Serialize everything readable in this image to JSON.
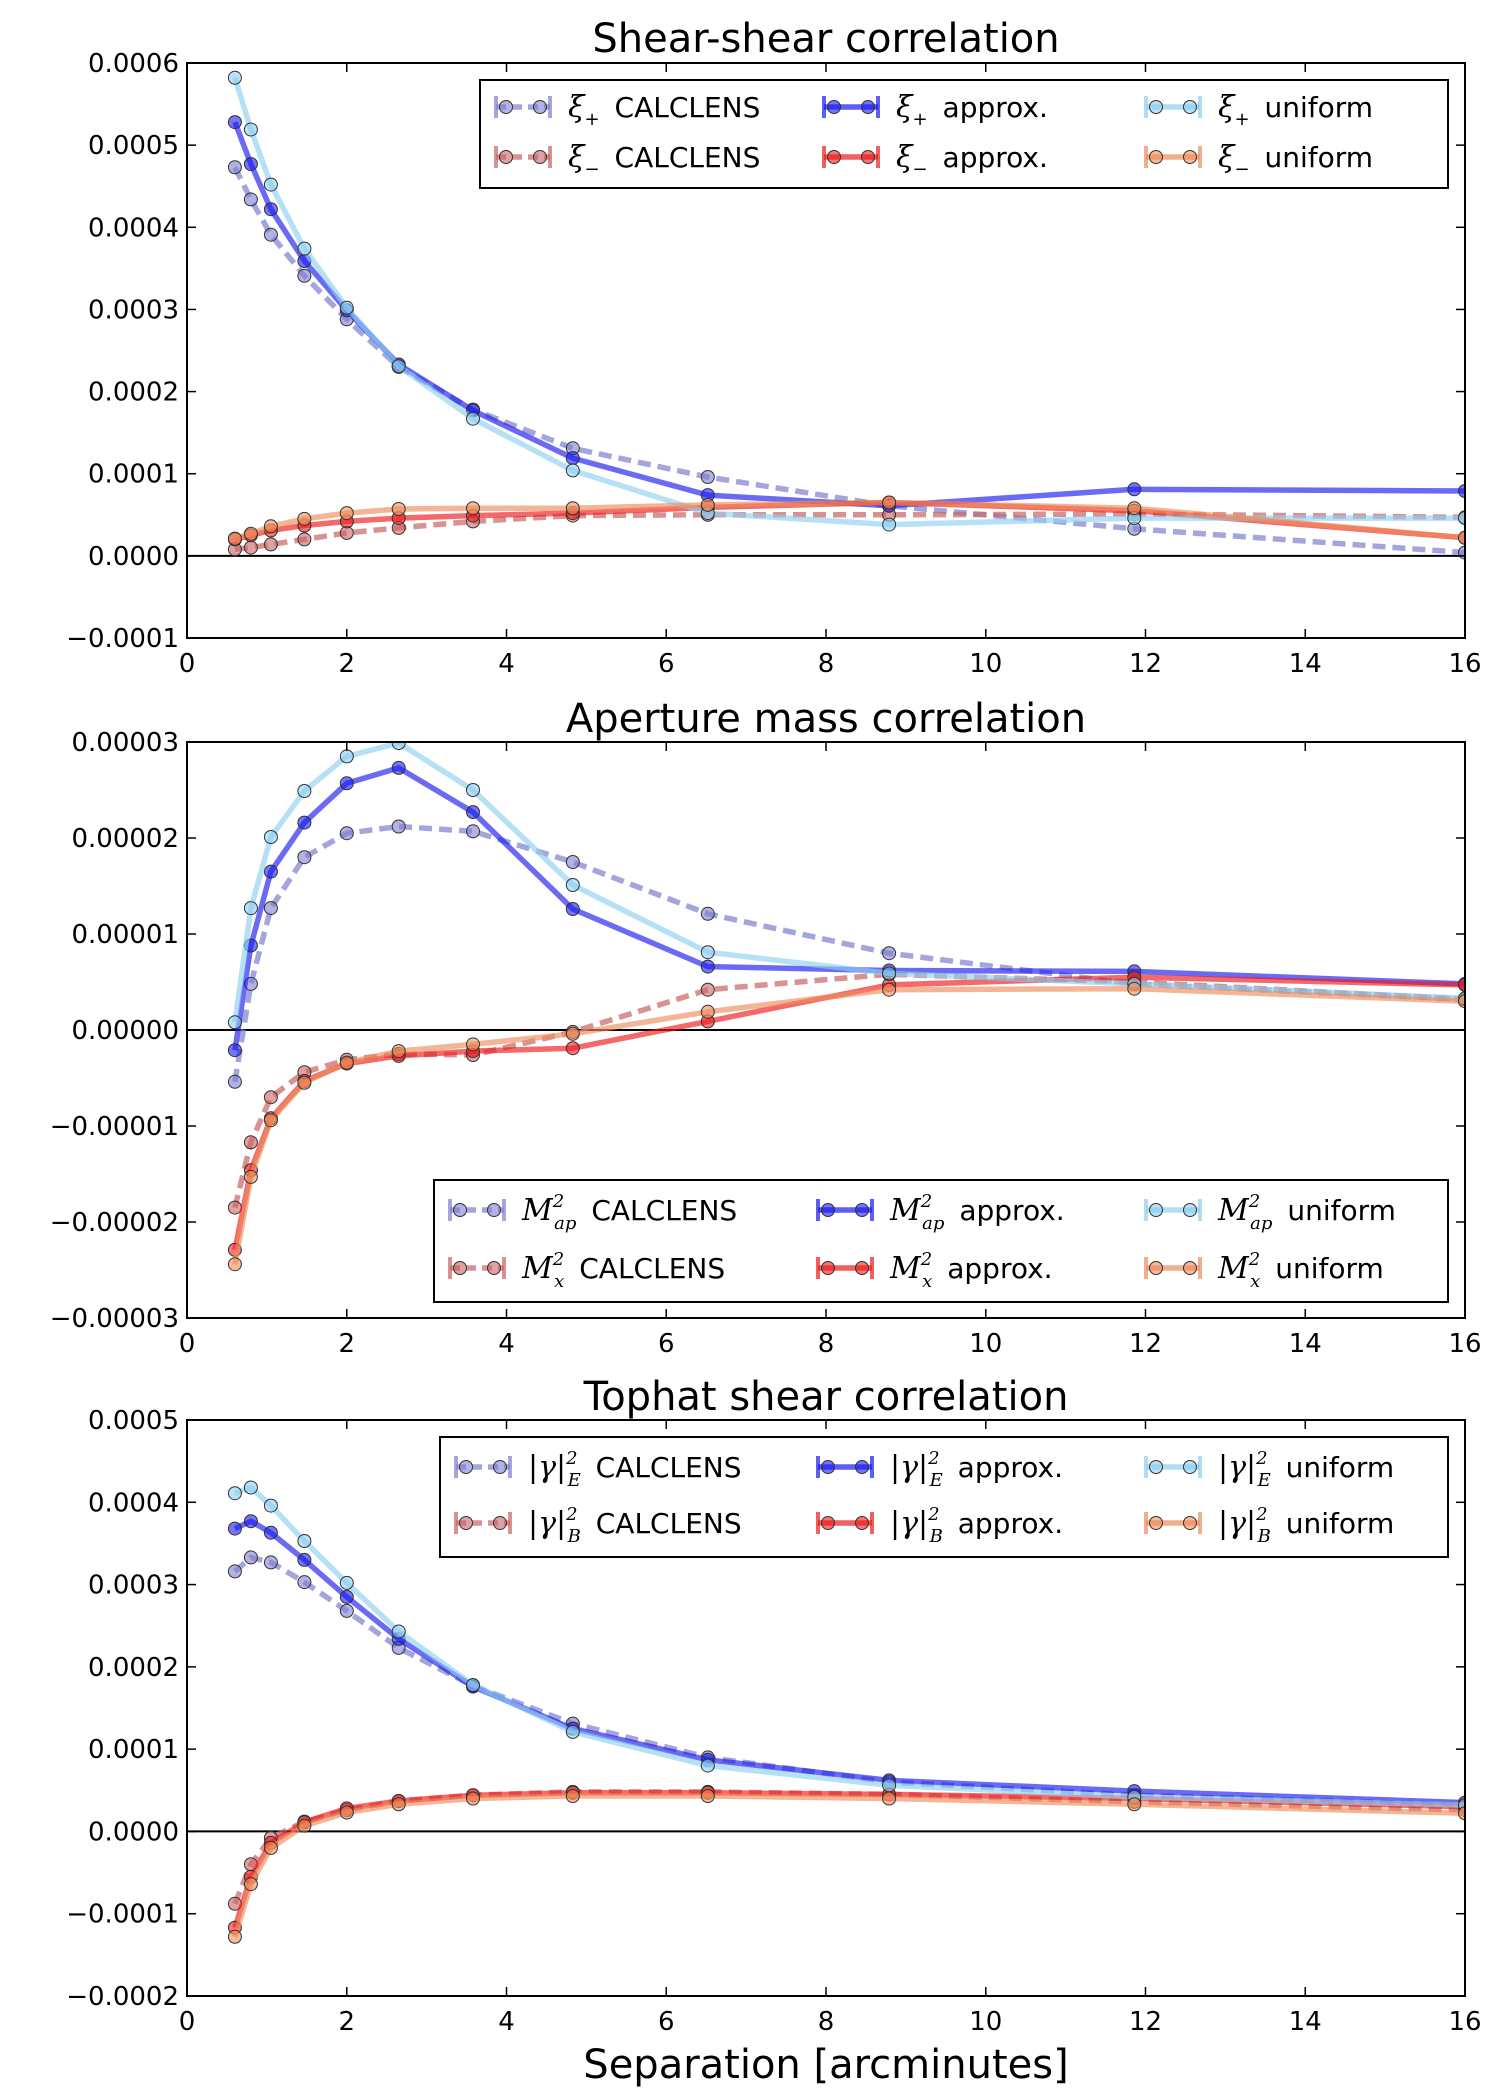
{
  "figure": {
    "xlabel": "Separation [arcminutes]"
  },
  "chart_data": [
    {
      "type": "line",
      "title": "Shear-shear correlation",
      "xlabel": "",
      "ylabel": "",
      "xlim": [
        0,
        16
      ],
      "ylim": [
        -0.0001,
        0.0006
      ],
      "xticks": [
        0,
        2,
        4,
        6,
        8,
        10,
        12,
        14,
        16
      ],
      "yticks": [
        -0.0001,
        0,
        0.0001,
        0.0002,
        0.0003,
        0.0004,
        0.0005,
        0.0006
      ],
      "ytick_labels": [
        "−0.0001",
        "0.0000",
        "0.0001",
        "0.0002",
        "0.0003",
        "0.0004",
        "0.0005",
        "0.0006"
      ],
      "zero_line": true,
      "legend_position": "top-right",
      "legend_columns": 3,
      "series": [
        {
          "legend_symbol": "ξ₊",
          "legend_text": "CALCLENS",
          "color": "#7f7fd0",
          "style": "dashed",
          "x": [
            0.6,
            0.8,
            1.05,
            1.47,
            2.0,
            2.65,
            3.58,
            4.83,
            6.52,
            8.79,
            11.86,
            16.0
          ],
          "y": [
            0.000473,
            0.000434,
            0.000391,
            0.000341,
            0.000288,
            0.00023,
            0.000178,
            0.000131,
            9.6e-05,
            6.1e-05,
            3.3e-05,
            4e-06
          ]
        },
        {
          "legend_symbol": "ξ₋",
          "legend_text": "CALCLENS",
          "color": "#c96464",
          "style": "dashed",
          "x": [
            0.6,
            0.8,
            1.05,
            1.47,
            2.0,
            2.65,
            3.58,
            4.83,
            6.52,
            8.79,
            11.86,
            16.0
          ],
          "y": [
            8e-06,
            1e-05,
            1.4e-05,
            2e-05,
            2.8e-05,
            3.4e-05,
            4.2e-05,
            4.9e-05,
            5e-05,
            5e-05,
            5.1e-05,
            4.7e-05
          ]
        },
        {
          "legend_symbol": "ξ₊",
          "legend_text": "approx.",
          "color": "#1a1aee",
          "style": "solid",
          "x": [
            0.6,
            0.8,
            1.05,
            1.47,
            2.0,
            2.65,
            3.58,
            4.83,
            6.52,
            8.79,
            11.86,
            16.0
          ],
          "y": [
            0.000528,
            0.000477,
            0.000422,
            0.000359,
            0.000299,
            0.000233,
            0.000177,
            0.000119,
            7.4e-05,
            6.1e-05,
            8.1e-05,
            7.9e-05
          ]
        },
        {
          "legend_symbol": "ξ₋",
          "legend_text": "approx.",
          "color": "#ee1a1a",
          "style": "solid",
          "x": [
            0.6,
            0.8,
            1.05,
            1.47,
            2.0,
            2.65,
            3.58,
            4.83,
            6.52,
            8.79,
            11.86,
            16.0
          ],
          "y": [
            2e-05,
            2.5e-05,
            3.1e-05,
            3.7e-05,
            4.2e-05,
            4.6e-05,
            4.9e-05,
            5.2e-05,
            5.9e-05,
            6.5e-05,
            5.5e-05,
            2.2e-05
          ]
        },
        {
          "legend_symbol": "ξ₊",
          "legend_text": "uniform",
          "color": "#8ecff0",
          "style": "solid",
          "x": [
            0.6,
            0.8,
            1.05,
            1.47,
            2.0,
            2.65,
            3.58,
            4.83,
            6.52,
            8.79,
            11.86,
            16.0
          ],
          "y": [
            0.000582,
            0.000519,
            0.000452,
            0.000374,
            0.000302,
            0.000231,
            0.000167,
            0.000104,
            5.2e-05,
            3.8e-05,
            4.6e-05,
            4.6e-05
          ]
        },
        {
          "legend_symbol": "ξ₋",
          "legend_text": "uniform",
          "color": "#ec8d5c",
          "style": "solid",
          "x": [
            0.6,
            0.8,
            1.05,
            1.47,
            2.0,
            2.65,
            3.58,
            4.83,
            6.52,
            8.79,
            11.86,
            16.0
          ],
          "y": [
            2.1e-05,
            2.7e-05,
            3.6e-05,
            4.5e-05,
            5.2e-05,
            5.7e-05,
            5.8e-05,
            5.8e-05,
            6.2e-05,
            6.5e-05,
            5.8e-05,
            2.2e-05
          ]
        }
      ]
    },
    {
      "type": "line",
      "title": "Aperture mass correlation",
      "xlabel": "",
      "ylabel": "",
      "xlim": [
        0,
        16
      ],
      "ylim": [
        -3e-05,
        3e-05
      ],
      "xticks": [
        0,
        2,
        4,
        6,
        8,
        10,
        12,
        14,
        16
      ],
      "yticks": [
        -3e-05,
        -2e-05,
        -1e-05,
        0,
        1e-05,
        2e-05,
        3e-05
      ],
      "ytick_labels": [
        "−0.00003",
        "−0.00002",
        "−0.00001",
        "0.00000",
        "0.00001",
        "0.00002",
        "0.00003"
      ],
      "zero_line": true,
      "legend_position": "bottom-right",
      "legend_columns": 3,
      "series": [
        {
          "legend_symbol": "Mₐₚ²",
          "legend_text": "CALCLENS",
          "color": "#7f7fd0",
          "style": "dashed",
          "x": [
            0.6,
            0.8,
            1.05,
            1.47,
            2.0,
            2.65,
            3.58,
            4.83,
            6.52,
            8.79,
            11.86,
            16.0
          ],
          "y": [
            -5.4e-06,
            4.8e-06,
            1.27e-05,
            1.8e-05,
            2.05e-05,
            2.12e-05,
            2.07e-05,
            1.75e-05,
            1.21e-05,
            8e-06,
            4.8e-06,
            3.2e-06
          ]
        },
        {
          "legend_symbol": "Mₓ²",
          "legend_text": "CALCLENS",
          "color": "#c96464",
          "style": "dashed",
          "x": [
            0.6,
            0.8,
            1.05,
            1.47,
            2.0,
            2.65,
            3.58,
            4.83,
            6.52,
            8.79,
            11.86,
            16.0
          ],
          "y": [
            -1.85e-05,
            -1.17e-05,
            -7e-06,
            -4.4e-06,
            -3.1e-06,
            -2.5e-06,
            -2.6e-06,
            -2e-07,
            4.2e-06,
            5.8e-06,
            5e-06,
            3.2e-06
          ]
        },
        {
          "legend_symbol": "Mₐₚ²",
          "legend_text": "approx.",
          "color": "#1a1aee",
          "style": "solid",
          "x": [
            0.6,
            0.8,
            1.05,
            1.47,
            2.0,
            2.65,
            3.58,
            4.83,
            6.52,
            8.79,
            11.86,
            16.0
          ],
          "y": [
            -2.1e-06,
            8.8e-06,
            1.65e-05,
            2.16e-05,
            2.57e-05,
            2.73e-05,
            2.27e-05,
            1.26e-05,
            6.6e-06,
            6.2e-06,
            6.1e-06,
            4.8e-06
          ]
        },
        {
          "legend_symbol": "Mₓ²",
          "legend_text": "approx.",
          "color": "#ee1a1a",
          "style": "solid",
          "x": [
            0.6,
            0.8,
            1.05,
            1.47,
            2.0,
            2.65,
            3.58,
            4.83,
            6.52,
            8.79,
            11.86,
            16.0
          ],
          "y": [
            -2.29e-05,
            -1.46e-05,
            -9.2e-06,
            -5.3e-06,
            -3.5e-06,
            -2.7e-06,
            -2.2e-06,
            -1.9e-06,
            9e-07,
            4.7e-06,
            5.5e-06,
            4.7e-06
          ]
        },
        {
          "legend_symbol": "Mₐₚ²",
          "legend_text": "uniform",
          "color": "#8ecff0",
          "style": "solid",
          "x": [
            0.6,
            0.8,
            1.05,
            1.47,
            2.0,
            2.65,
            3.58,
            4.83,
            6.52,
            8.79,
            11.86,
            16.0
          ],
          "y": [
            8e-07,
            1.27e-05,
            2.01e-05,
            2.49e-05,
            2.85e-05,
            2.99e-05,
            2.5e-05,
            1.51e-05,
            8.1e-06,
            5.9e-06,
            4.8e-06,
            3.3e-06
          ]
        },
        {
          "legend_symbol": "Mₓ²",
          "legend_text": "uniform",
          "color": "#ec8d5c",
          "style": "solid",
          "x": [
            0.6,
            0.8,
            1.05,
            1.47,
            2.0,
            2.65,
            3.58,
            4.83,
            6.52,
            8.79,
            11.86,
            16.0
          ],
          "y": [
            -2.44e-05,
            -1.53e-05,
            -9.4e-06,
            -5.5e-06,
            -3.4e-06,
            -2.2e-06,
            -1.5e-06,
            -4e-07,
            1.9e-06,
            4.2e-06,
            4.3e-06,
            3e-06
          ]
        }
      ]
    },
    {
      "type": "line",
      "title": "Tophat shear correlation",
      "xlabel": "Separation [arcminutes]",
      "ylabel": "",
      "xlim": [
        0,
        16
      ],
      "ylim": [
        -0.0002,
        0.0005
      ],
      "xticks": [
        0,
        2,
        4,
        6,
        8,
        10,
        12,
        14,
        16
      ],
      "yticks": [
        -0.0002,
        -0.0001,
        0,
        0.0001,
        0.0002,
        0.0003,
        0.0004,
        0.0005
      ],
      "ytick_labels": [
        "−0.0002",
        "−0.0001",
        "0.0000",
        "0.0001",
        "0.0002",
        "0.0003",
        "0.0004",
        "0.0005"
      ],
      "zero_line": true,
      "legend_position": "top-right",
      "legend_columns": 3,
      "series": [
        {
          "legend_symbol": "|γ|²ᴇ",
          "legend_text": "CALCLENS",
          "color": "#7f7fd0",
          "style": "dashed",
          "x": [
            0.6,
            0.8,
            1.05,
            1.47,
            2.0,
            2.65,
            3.58,
            4.83,
            6.52,
            8.79,
            11.86,
            16.0
          ],
          "y": [
            0.000316,
            0.000333,
            0.000327,
            0.000303,
            0.000268,
            0.000223,
            0.000177,
            0.000131,
            9e-05,
            6e-05,
            4.4e-05,
            3.2e-05
          ]
        },
        {
          "legend_symbol": "|γ|²ʙ",
          "legend_text": "CALCLENS",
          "color": "#c96464",
          "style": "dashed",
          "x": [
            0.6,
            0.8,
            1.05,
            1.47,
            2.0,
            2.65,
            3.58,
            4.83,
            6.52,
            8.79,
            11.86,
            16.0
          ],
          "y": [
            -8.8e-05,
            -4e-05,
            -8e-06,
            1.2e-05,
            2.6e-05,
            3.7e-05,
            4.4e-05,
            4.8e-05,
            4.8e-05,
            4.5e-05,
            3.6e-05,
            2.6e-05
          ]
        },
        {
          "legend_symbol": "|γ|²ᴇ",
          "legend_text": "approx.",
          "color": "#1a1aee",
          "style": "solid",
          "x": [
            0.6,
            0.8,
            1.05,
            1.47,
            2.0,
            2.65,
            3.58,
            4.83,
            6.52,
            8.79,
            11.86,
            16.0
          ],
          "y": [
            0.000368,
            0.000377,
            0.000363,
            0.00033,
            0.000285,
            0.000234,
            0.000176,
            0.000125,
            8.7e-05,
            6.2e-05,
            4.9e-05,
            3.5e-05
          ]
        },
        {
          "legend_symbol": "|γ|²ʙ",
          "legend_text": "approx.",
          "color": "#ee1a1a",
          "style": "solid",
          "x": [
            0.6,
            0.8,
            1.05,
            1.47,
            2.0,
            2.65,
            3.58,
            4.83,
            6.52,
            8.79,
            11.86,
            16.0
          ],
          "y": [
            -0.000117,
            -5.5e-05,
            -1.4e-05,
            1.1e-05,
            2.8e-05,
            3.7e-05,
            4.4e-05,
            4.7e-05,
            4.7e-05,
            4.5e-05,
            4e-05,
            3e-05
          ]
        },
        {
          "legend_symbol": "|γ|²ᴇ",
          "legend_text": "uniform",
          "color": "#8ecff0",
          "style": "solid",
          "x": [
            0.6,
            0.8,
            1.05,
            1.47,
            2.0,
            2.65,
            3.58,
            4.83,
            6.52,
            8.79,
            11.86,
            16.0
          ],
          "y": [
            0.000411,
            0.000418,
            0.000396,
            0.000353,
            0.000302,
            0.000243,
            0.000178,
            0.000121,
            8e-05,
            5.6e-05,
            4.2e-05,
            3.2e-05
          ]
        },
        {
          "legend_symbol": "|γ|²ʙ",
          "legend_text": "uniform",
          "color": "#ec8d5c",
          "style": "solid",
          "x": [
            0.6,
            0.8,
            1.05,
            1.47,
            2.0,
            2.65,
            3.58,
            4.83,
            6.52,
            8.79,
            11.86,
            16.0
          ],
          "y": [
            -0.000128,
            -6.4e-05,
            -2e-05,
            7e-06,
            2.3e-05,
            3.3e-05,
            4e-05,
            4.3e-05,
            4.3e-05,
            4e-05,
            3.3e-05,
            2.2e-05
          ]
        }
      ]
    }
  ]
}
